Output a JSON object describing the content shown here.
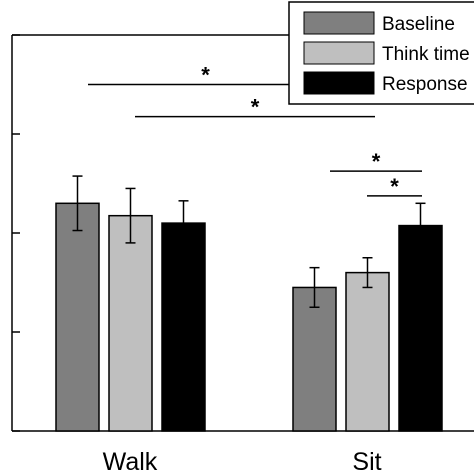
{
  "chart_data": {
    "type": "bar",
    "categories": [
      "Walk",
      "Sit"
    ],
    "series": [
      {
        "name": "Baseline",
        "color": "#7f7f7f",
        "values": [
          4.6,
          2.9
        ],
        "errors": [
          0.55,
          0.4
        ]
      },
      {
        "name": "Think time",
        "color": "#bfbfbf",
        "values": [
          4.35,
          3.2
        ],
        "errors": [
          0.55,
          0.3
        ]
      },
      {
        "name": "Response",
        "color": "#000000",
        "values": [
          4.2,
          4.15
        ],
        "errors": [
          0.45,
          0.45
        ]
      }
    ],
    "ylim": [
      0,
      8
    ],
    "y_ticks": [
      0,
      2,
      4,
      6,
      8
    ],
    "y_tick_labels_visible": false,
    "legend_position": "top-right",
    "significance": [
      {
        "label": "*",
        "from": "Walk",
        "to": "Sit",
        "level": 7.0
      },
      {
        "label": "*",
        "from": "Walk",
        "to": "Sit",
        "level": 6.35
      },
      {
        "label": "*",
        "from": "Sit Baseline",
        "to": "Sit Response",
        "level": 5.25
      },
      {
        "label": "*",
        "from": "Sit Think time",
        "to": "Sit Response",
        "level": 4.75
      }
    ]
  }
}
